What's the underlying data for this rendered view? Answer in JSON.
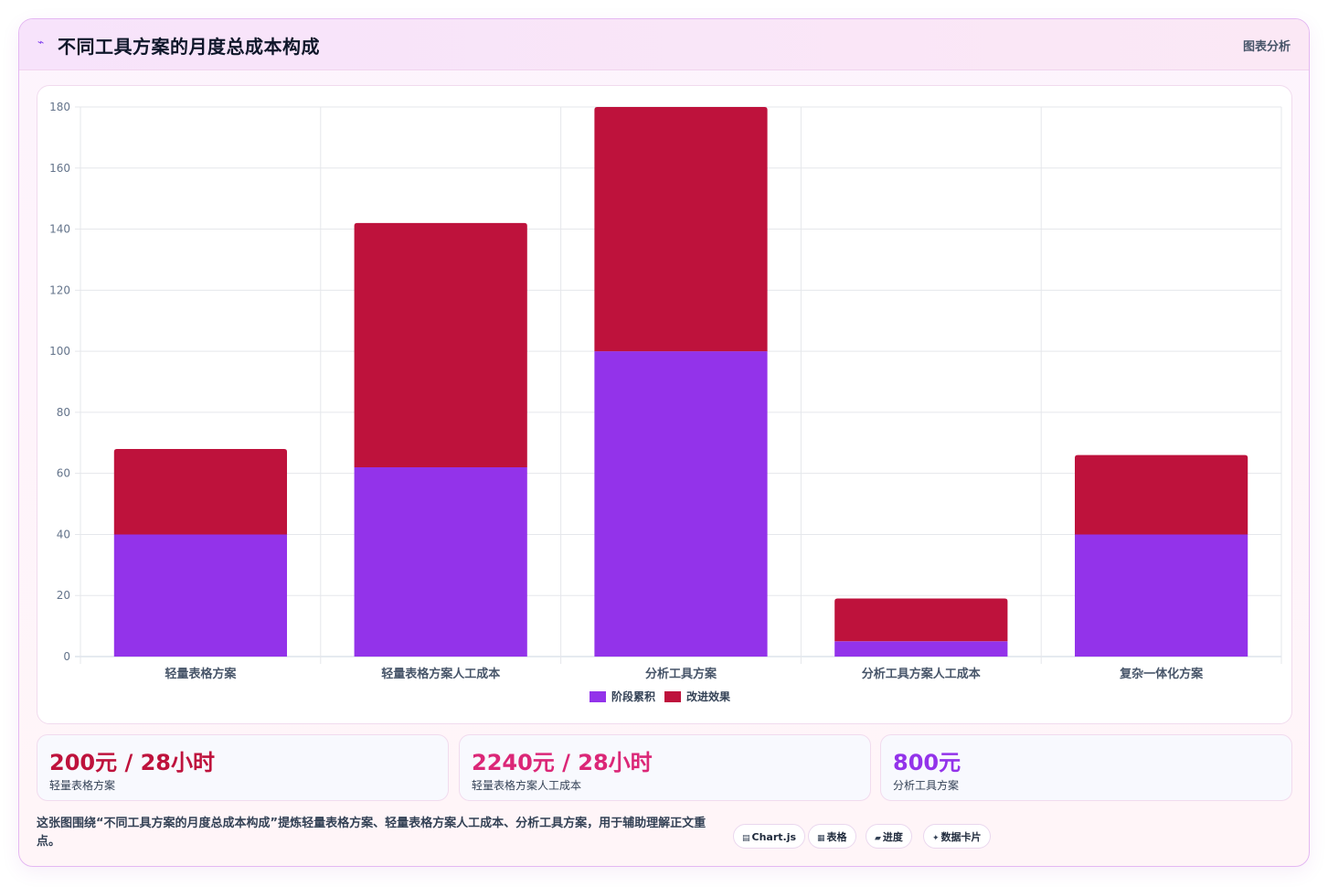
{
  "header": {
    "icon": "trend-icon",
    "title": "不同工具方案的月度总成本构成",
    "tag": "图表分析"
  },
  "chart_data": {
    "type": "bar",
    "stacked": true,
    "categories": [
      "轻量表格方案",
      "轻量表格方案人工成本",
      "分析工具方案",
      "分析工具方案人工成本",
      "复杂一体化方案"
    ],
    "series": [
      {
        "name": "阶段累积",
        "values": [
          40,
          62,
          100,
          5,
          40
        ],
        "color": "#9333ea"
      },
      {
        "name": "改进效果",
        "values": [
          28,
          80,
          80,
          14,
          26
        ],
        "color": "#be123c"
      }
    ],
    "ylim": [
      0,
      180
    ],
    "yticks": [
      0,
      20,
      40,
      60,
      80,
      100,
      120,
      140,
      160,
      180
    ],
    "grid": true,
    "legend": "bottom"
  },
  "stats": [
    {
      "value": "200元 / 28小时",
      "label": "轻量表格方案",
      "color": "#be123c"
    },
    {
      "value": "2240元 / 28小时",
      "label": "轻量表格方案人工成本",
      "color": "#db2777"
    },
    {
      "value": "800元",
      "label": "分析工具方案",
      "color": "#9333ea"
    }
  ],
  "note": "这张图围绕“不同工具方案的月度总成本构成”提炼轻量表格方案、轻量表格方案人工成本、分析工具方案，用于辅助理解正文重点。",
  "chips": [
    {
      "icon": "▤",
      "label": "Chart.js"
    },
    {
      "icon": "▦",
      "label": "表格"
    },
    {
      "icon": "▰",
      "label": "进度"
    },
    {
      "icon": "✦",
      "label": "数据卡片"
    }
  ]
}
